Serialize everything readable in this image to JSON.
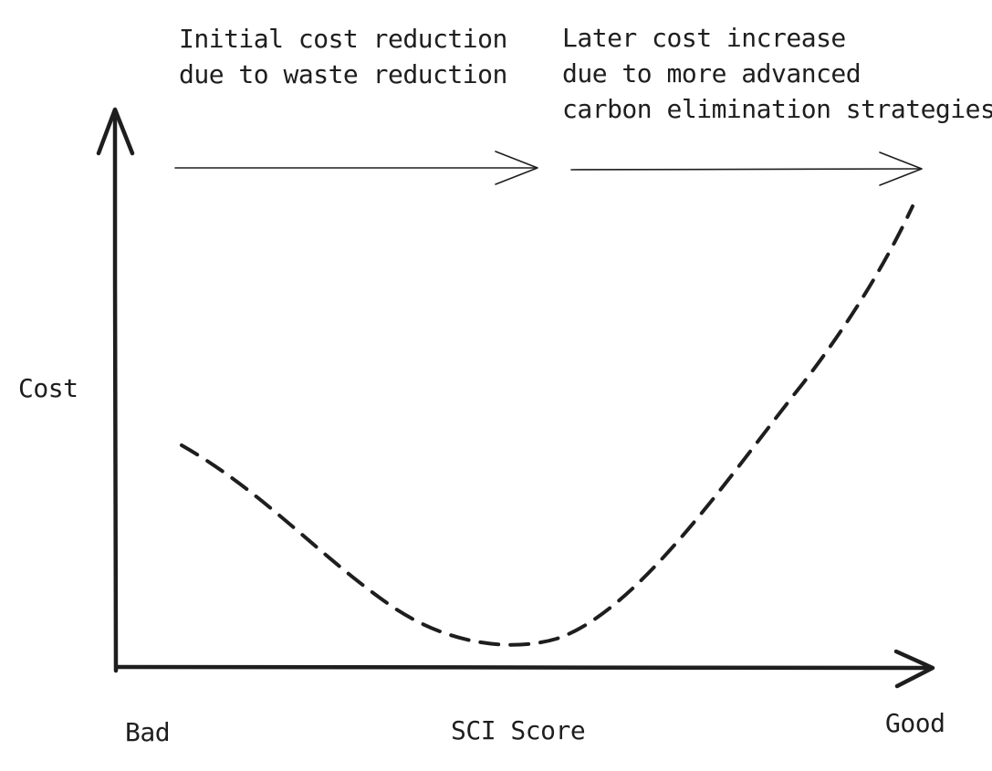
{
  "annotations": {
    "left": {
      "lines": [
        "Initial cost reduction",
        "due to waste reduction"
      ]
    },
    "right": {
      "lines": [
        "Later cost increase",
        "due to more advanced",
        "carbon elimination strategies"
      ]
    }
  },
  "axes": {
    "y_label": "Cost",
    "x_label": "SCI Score",
    "x_ticks": {
      "low": "Bad",
      "high": "Good"
    }
  },
  "curve": {
    "style": "dashed",
    "description_values": {
      "start_cost_level": 0.44,
      "minimum_cost_level": 0.04,
      "minimum_at_score": 0.49,
      "end_cost_level": 0.86
    }
  },
  "colors": {
    "ink": "#1e1e1e",
    "background": "#ffffff"
  }
}
